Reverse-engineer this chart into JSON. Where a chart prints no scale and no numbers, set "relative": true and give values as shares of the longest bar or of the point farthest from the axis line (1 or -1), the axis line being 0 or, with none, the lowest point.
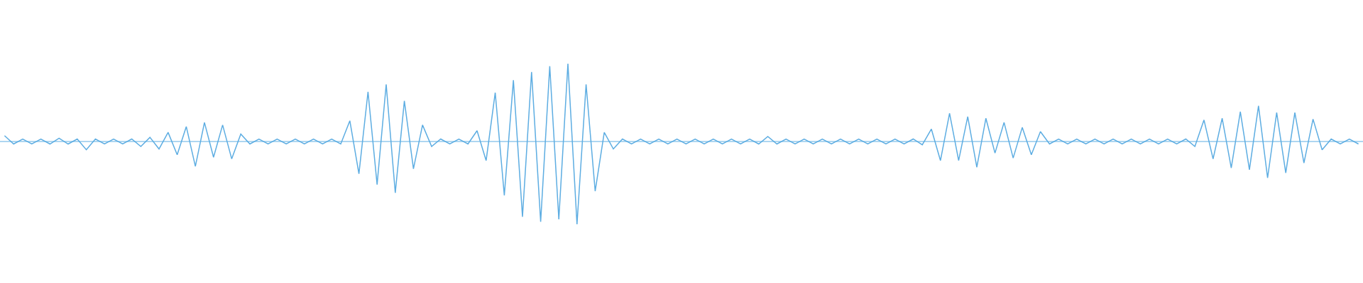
{
  "chart_data": {
    "type": "line",
    "relative": true,
    "color": "#5dade2",
    "ref_lines": [
      {
        "axis": "y",
        "value": 0,
        "color": "#5dade2",
        "line_style": "solid"
      }
    ],
    "categories": [
      null,
      null,
      null,
      null,
      null,
      null,
      null,
      null,
      null,
      null,
      null,
      null,
      null,
      null,
      null,
      null,
      null,
      null,
      null,
      null,
      null,
      null,
      null,
      null,
      null,
      null,
      null,
      null,
      null,
      null,
      null,
      null,
      null,
      null,
      null,
      null,
      null,
      null,
      null,
      null,
      null,
      null,
      null,
      null,
      null,
      null,
      null,
      null,
      null,
      null,
      null,
      null,
      null,
      null,
      null,
      null,
      null,
      null,
      null,
      null,
      null,
      null,
      null,
      null,
      null,
      null,
      null,
      null,
      null,
      null,
      null,
      null,
      null,
      null,
      null,
      null,
      null,
      null,
      null,
      null,
      null,
      null,
      null,
      null,
      null,
      null,
      null,
      null,
      null,
      null,
      null,
      null,
      null,
      null,
      null,
      null,
      null,
      null,
      null,
      null,
      null,
      null,
      null,
      null,
      null,
      null,
      null,
      null,
      null,
      null,
      null,
      null,
      null,
      null,
      null,
      null,
      null,
      null,
      null,
      null,
      null,
      null,
      null,
      null,
      null,
      null,
      null,
      null,
      null,
      null,
      null,
      null,
      null,
      null,
      null,
      null,
      null,
      null,
      null,
      null,
      null,
      null,
      null,
      null,
      null,
      null,
      null,
      null,
      null,
      null
    ],
    "values": [
      0.07,
      -0.03,
      0.03,
      -0.03,
      0.03,
      -0.03,
      0.04,
      -0.03,
      0.03,
      -0.1,
      0.03,
      -0.03,
      0.03,
      -0.03,
      0.03,
      -0.06,
      0.05,
      -0.09,
      0.11,
      -0.16,
      0.18,
      -0.3,
      0.23,
      -0.19,
      0.2,
      -0.21,
      0.09,
      -0.03,
      0.03,
      -0.03,
      0.03,
      -0.03,
      0.03,
      -0.03,
      0.03,
      -0.03,
      0.03,
      -0.03,
      0.25,
      -0.39,
      0.6,
      -0.52,
      0.69,
      -0.62,
      0.49,
      -0.33,
      0.2,
      -0.06,
      0.03,
      -0.03,
      0.03,
      -0.03,
      0.13,
      -0.23,
      0.59,
      -0.65,
      0.74,
      -0.91,
      0.84,
      -0.97,
      0.91,
      -0.94,
      0.94,
      -1,
      0.69,
      -0.6,
      0.11,
      -0.09,
      0.03,
      -0.03,
      0.03,
      -0.03,
      0.03,
      -0.03,
      0.03,
      -0.03,
      0.03,
      -0.03,
      0.03,
      -0.03,
      0.03,
      -0.03,
      0.03,
      -0.03,
      0.06,
      -0.03,
      0.03,
      -0.03,
      0.03,
      -0.03,
      0.03,
      -0.03,
      0.03,
      -0.03,
      0.03,
      -0.03,
      0.03,
      -0.03,
      0.03,
      -0.03,
      0.03,
      -0.04,
      0.15,
      -0.23,
      0.34,
      -0.23,
      0.3,
      -0.31,
      0.28,
      -0.14,
      0.23,
      -0.2,
      0.17,
      -0.16,
      0.12,
      -0.03,
      0.03,
      -0.03,
      0.03,
      -0.03,
      0.03,
      -0.03,
      0.03,
      -0.03,
      0.03,
      -0.03,
      0.03,
      -0.03,
      0.03,
      -0.03,
      0.03,
      -0.06,
      0.26,
      -0.21,
      0.28,
      -0.32,
      0.36,
      -0.34,
      0.43,
      -0.44,
      0.35,
      -0.38,
      0.35,
      -0.26,
      0.27,
      -0.1,
      0.03,
      -0.03,
      0.03,
      -0.03
    ]
  }
}
